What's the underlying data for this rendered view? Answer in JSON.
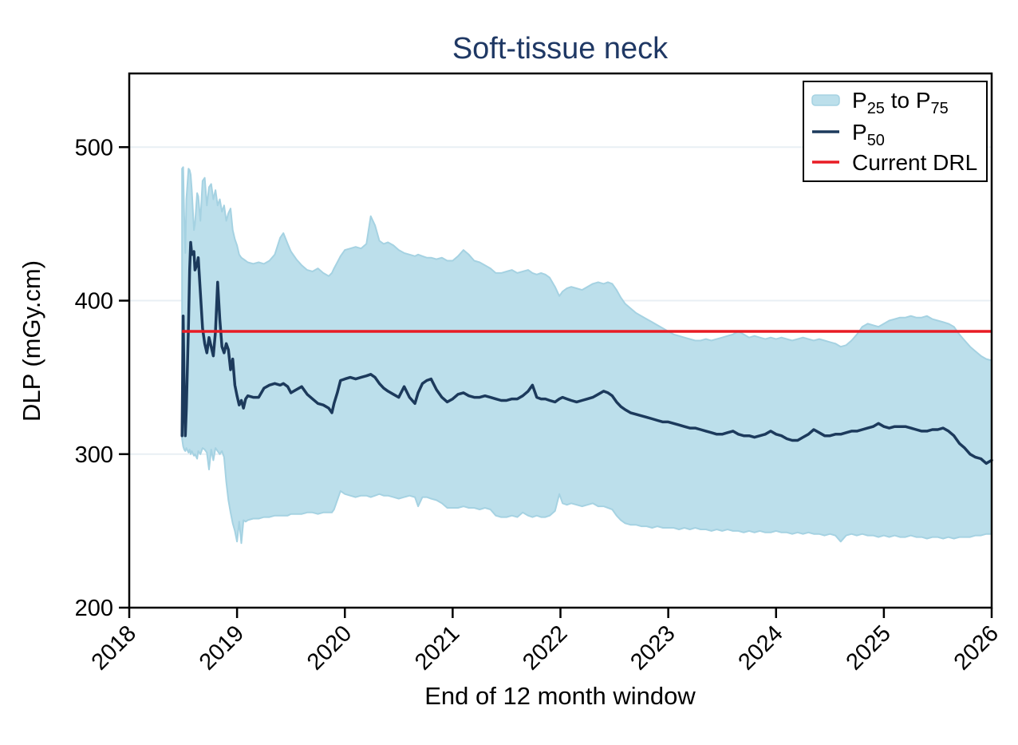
{
  "title": "Soft-tissue neck",
  "colors": {
    "title_navy": "#1f3864",
    "band_fill": "#bcdfeb",
    "band_edge": "#a5d2e2",
    "median_line": "#1c3a5c",
    "drl_red": "#e81c24",
    "gridline": "#e8eff4",
    "axis_black": "#000000",
    "legend_border": "#000000",
    "background": "#ffffff"
  },
  "chart_data": {
    "type": "area",
    "title": "Soft-tissue neck",
    "xlabel": "End of 12 month window",
    "ylabel": "DLP (mGy.cm)",
    "xlim": [
      2018,
      2026
    ],
    "ylim": [
      200,
      548
    ],
    "xticks": [
      2018,
      2019,
      2020,
      2021,
      2022,
      2023,
      2024,
      2025,
      2026
    ],
    "yticks": [
      200,
      300,
      400,
      500
    ],
    "grid": "horizontal gridlines at 300, 400, 500",
    "legend_position": "top-right",
    "legend": [
      {
        "swatch": "band",
        "parts": [
          {
            "t": "P"
          },
          {
            "t": "25",
            "sub": true
          },
          {
            "t": " to P"
          },
          {
            "t": "75",
            "sub": true
          }
        ]
      },
      {
        "swatch": "line-navy",
        "parts": [
          {
            "t": "P"
          },
          {
            "t": "50",
            "sub": true
          }
        ]
      },
      {
        "swatch": "line-red",
        "parts": [
          {
            "t": "Current DRL"
          }
        ]
      }
    ],
    "current_drl": 380,
    "series_names": [
      "P25",
      "P50",
      "P75"
    ],
    "points": [
      [
        2018.49,
        310,
        312,
        486
      ],
      [
        2018.5,
        305,
        390,
        487
      ],
      [
        2018.51,
        303,
        340,
        455
      ],
      [
        2018.52,
        302,
        312,
        431
      ],
      [
        2018.53,
        304,
        330,
        466
      ],
      [
        2018.55,
        301,
        385,
        486
      ],
      [
        2018.56,
        303,
        420,
        485
      ],
      [
        2018.57,
        300,
        438,
        482
      ],
      [
        2018.58,
        302,
        430,
        472
      ],
      [
        2018.6,
        299,
        432,
        446
      ],
      [
        2018.61,
        300,
        420,
        450
      ],
      [
        2018.63,
        297,
        424,
        470
      ],
      [
        2018.64,
        302,
        428,
        468
      ],
      [
        2018.66,
        300,
        405,
        452
      ],
      [
        2018.68,
        304,
        382,
        478
      ],
      [
        2018.7,
        303,
        372,
        480
      ],
      [
        2018.72,
        301,
        366,
        462
      ],
      [
        2018.74,
        290,
        376,
        474
      ],
      [
        2018.76,
        303,
        370,
        476
      ],
      [
        2018.78,
        296,
        364,
        466
      ],
      [
        2018.8,
        304,
        380,
        472
      ],
      [
        2018.82,
        302,
        412,
        462
      ],
      [
        2018.84,
        300,
        388,
        466
      ],
      [
        2018.86,
        302,
        370,
        458
      ],
      [
        2018.88,
        298,
        366,
        462
      ],
      [
        2018.9,
        282,
        372,
        452
      ],
      [
        2018.92,
        270,
        368,
        457
      ],
      [
        2018.94,
        262,
        355,
        460
      ],
      [
        2018.96,
        255,
        362,
        446
      ],
      [
        2018.98,
        250,
        345,
        440
      ],
      [
        2019.0,
        243,
        338,
        436
      ],
      [
        2019.02,
        256,
        332,
        430
      ],
      [
        2019.04,
        242,
        335,
        428
      ],
      [
        2019.06,
        257,
        330,
        427
      ],
      [
        2019.08,
        256,
        336,
        426
      ],
      [
        2019.1,
        257,
        338,
        425
      ],
      [
        2019.15,
        258,
        337,
        424
      ],
      [
        2019.2,
        258,
        337,
        425
      ],
      [
        2019.25,
        259,
        343,
        424
      ],
      [
        2019.3,
        259,
        345,
        426
      ],
      [
        2019.35,
        260,
        346,
        430
      ],
      [
        2019.4,
        260,
        345,
        441
      ],
      [
        2019.43,
        260,
        346,
        444
      ],
      [
        2019.47,
        260,
        344,
        437
      ],
      [
        2019.5,
        261,
        340,
        432
      ],
      [
        2019.55,
        261,
        342,
        427
      ],
      [
        2019.6,
        261,
        344,
        423
      ],
      [
        2019.65,
        262,
        339,
        420
      ],
      [
        2019.7,
        262,
        336,
        419
      ],
      [
        2019.75,
        261,
        333,
        421
      ],
      [
        2019.8,
        262,
        332,
        418
      ],
      [
        2019.85,
        262,
        330,
        416
      ],
      [
        2019.88,
        262,
        327,
        418
      ],
      [
        2019.9,
        264,
        333,
        421
      ],
      [
        2019.93,
        270,
        340,
        425
      ],
      [
        2019.96,
        276,
        348,
        429
      ],
      [
        2020.0,
        274,
        349,
        433
      ],
      [
        2020.05,
        273,
        350,
        434
      ],
      [
        2020.1,
        272,
        349,
        435
      ],
      [
        2020.15,
        273,
        350,
        434
      ],
      [
        2020.2,
        273,
        351,
        437
      ],
      [
        2020.24,
        272,
        352,
        455
      ],
      [
        2020.28,
        273,
        350,
        449
      ],
      [
        2020.32,
        274,
        346,
        439
      ],
      [
        2020.36,
        273,
        343,
        437
      ],
      [
        2020.4,
        273,
        341,
        438
      ],
      [
        2020.45,
        272,
        339,
        436
      ],
      [
        2020.5,
        271,
        337,
        433
      ],
      [
        2020.55,
        272,
        344,
        431
      ],
      [
        2020.6,
        273,
        337,
        430
      ],
      [
        2020.65,
        272,
        333,
        429
      ],
      [
        2020.68,
        266,
        340,
        430
      ],
      [
        2020.72,
        272,
        346,
        429
      ],
      [
        2020.76,
        272,
        348,
        428
      ],
      [
        2020.8,
        271,
        349,
        428
      ],
      [
        2020.85,
        270,
        342,
        427
      ],
      [
        2020.9,
        268,
        337,
        428
      ],
      [
        2020.95,
        265,
        334,
        426
      ],
      [
        2021.0,
        265,
        336,
        426
      ],
      [
        2021.05,
        265,
        339,
        429
      ],
      [
        2021.1,
        266,
        340,
        433
      ],
      [
        2021.15,
        265,
        338,
        430
      ],
      [
        2021.2,
        265,
        337,
        426
      ],
      [
        2021.25,
        264,
        337,
        425
      ],
      [
        2021.3,
        265,
        338,
        423
      ],
      [
        2021.35,
        264,
        337,
        421
      ],
      [
        2021.4,
        260,
        336,
        418
      ],
      [
        2021.45,
        259,
        335,
        418
      ],
      [
        2021.5,
        259,
        335,
        419
      ],
      [
        2021.55,
        260,
        336,
        420
      ],
      [
        2021.6,
        259,
        336,
        418
      ],
      [
        2021.65,
        262,
        338,
        419
      ],
      [
        2021.7,
        260,
        341,
        420
      ],
      [
        2021.74,
        259,
        345,
        418
      ],
      [
        2021.78,
        260,
        337,
        417
      ],
      [
        2021.82,
        259,
        336,
        418
      ],
      [
        2021.86,
        259,
        336,
        417
      ],
      [
        2021.9,
        260,
        335,
        415
      ],
      [
        2021.95,
        263,
        334,
        409
      ],
      [
        2021.99,
        274,
        336,
        403
      ],
      [
        2022.02,
        268,
        337,
        406
      ],
      [
        2022.06,
        267,
        336,
        408
      ],
      [
        2022.1,
        268,
        335,
        409
      ],
      [
        2022.15,
        267,
        334,
        408
      ],
      [
        2022.2,
        266,
        335,
        407
      ],
      [
        2022.25,
        267,
        336,
        409
      ],
      [
        2022.3,
        268,
        337,
        411
      ],
      [
        2022.35,
        266,
        339,
        412
      ],
      [
        2022.4,
        266,
        341,
        411
      ],
      [
        2022.44,
        265,
        340,
        412
      ],
      [
        2022.48,
        264,
        338,
        411
      ],
      [
        2022.52,
        260,
        334,
        407
      ],
      [
        2022.56,
        257,
        331,
        402
      ],
      [
        2022.6,
        255,
        329,
        398
      ],
      [
        2022.65,
        254,
        327,
        395
      ],
      [
        2022.7,
        254,
        326,
        392
      ],
      [
        2022.75,
        253,
        325,
        390
      ],
      [
        2022.8,
        253,
        324,
        388
      ],
      [
        2022.85,
        252,
        323,
        386
      ],
      [
        2022.9,
        253,
        322,
        384
      ],
      [
        2022.95,
        252,
        321,
        382
      ],
      [
        2023.0,
        252,
        321,
        380
      ],
      [
        2023.05,
        252,
        320,
        378
      ],
      [
        2023.1,
        251,
        319,
        377
      ],
      [
        2023.15,
        252,
        318,
        376
      ],
      [
        2023.2,
        251,
        317,
        375
      ],
      [
        2023.25,
        252,
        317,
        374
      ],
      [
        2023.3,
        251,
        316,
        374
      ],
      [
        2023.35,
        251,
        315,
        375
      ],
      [
        2023.4,
        250,
        314,
        374
      ],
      [
        2023.45,
        251,
        313,
        375
      ],
      [
        2023.5,
        250,
        313,
        376
      ],
      [
        2023.55,
        251,
        314,
        377
      ],
      [
        2023.6,
        250,
        315,
        378
      ],
      [
        2023.65,
        250,
        313,
        380
      ],
      [
        2023.7,
        249,
        312,
        378
      ],
      [
        2023.75,
        250,
        312,
        376
      ],
      [
        2023.8,
        249,
        311,
        377
      ],
      [
        2023.85,
        250,
        312,
        376
      ],
      [
        2023.9,
        249,
        313,
        375
      ],
      [
        2023.95,
        249,
        315,
        376
      ],
      [
        2024.0,
        250,
        313,
        375
      ],
      [
        2024.05,
        249,
        312,
        376
      ],
      [
        2024.1,
        249,
        310,
        375
      ],
      [
        2024.15,
        248,
        309,
        374
      ],
      [
        2024.2,
        249,
        309,
        375
      ],
      [
        2024.25,
        248,
        311,
        376
      ],
      [
        2024.3,
        249,
        313,
        375
      ],
      [
        2024.35,
        248,
        316,
        374
      ],
      [
        2024.4,
        248,
        314,
        375
      ],
      [
        2024.45,
        247,
        312,
        374
      ],
      [
        2024.5,
        248,
        312,
        373
      ],
      [
        2024.55,
        247,
        313,
        372
      ],
      [
        2024.6,
        243,
        313,
        370
      ],
      [
        2024.65,
        247,
        314,
        371
      ],
      [
        2024.7,
        248,
        315,
        374
      ],
      [
        2024.75,
        247,
        315,
        378
      ],
      [
        2024.8,
        248,
        316,
        383
      ],
      [
        2024.85,
        247,
        317,
        385
      ],
      [
        2024.9,
        247,
        318,
        384
      ],
      [
        2024.95,
        246,
        320,
        383
      ],
      [
        2025.0,
        247,
        318,
        385
      ],
      [
        2025.05,
        246,
        317,
        387
      ],
      [
        2025.1,
        247,
        318,
        388
      ],
      [
        2025.15,
        246,
        318,
        389
      ],
      [
        2025.2,
        246,
        318,
        389
      ],
      [
        2025.25,
        247,
        317,
        390
      ],
      [
        2025.3,
        246,
        316,
        389
      ],
      [
        2025.35,
        246,
        315,
        389
      ],
      [
        2025.4,
        245,
        315,
        390
      ],
      [
        2025.45,
        246,
        316,
        388
      ],
      [
        2025.5,
        246,
        316,
        387
      ],
      [
        2025.55,
        245,
        317,
        386
      ],
      [
        2025.6,
        246,
        315,
        385
      ],
      [
        2025.65,
        245,
        312,
        383
      ],
      [
        2025.7,
        246,
        307,
        378
      ],
      [
        2025.75,
        246,
        304,
        374
      ],
      [
        2025.8,
        246,
        300,
        370
      ],
      [
        2025.85,
        247,
        298,
        367
      ],
      [
        2025.9,
        247,
        297,
        364
      ],
      [
        2025.95,
        248,
        294,
        362
      ],
      [
        2026.0,
        248,
        296,
        361
      ]
    ]
  }
}
